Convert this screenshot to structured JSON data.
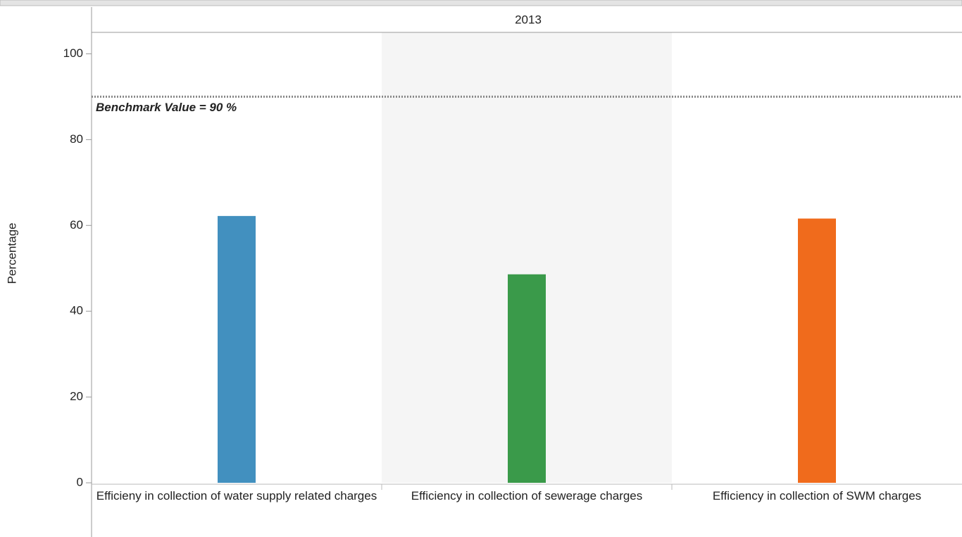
{
  "chart_data": {
    "type": "bar",
    "panel_label": "2013",
    "y_label": "Percentage",
    "categories": [
      "Efficieny in collection of water supply related charges",
      "Efficiency in collection of sewerage charges",
      "Efficiency in collection of SWM charges"
    ],
    "values": [
      62.2,
      48.6,
      61.6
    ],
    "colors": [
      "#4290bf",
      "#3a9a4a",
      "#f06b1c"
    ],
    "ylim": [
      0,
      105
    ],
    "yticks": [
      0,
      20,
      40,
      60,
      80,
      100
    ],
    "benchmark": 90,
    "benchmark_label": "Benchmark Value = 90 %"
  }
}
